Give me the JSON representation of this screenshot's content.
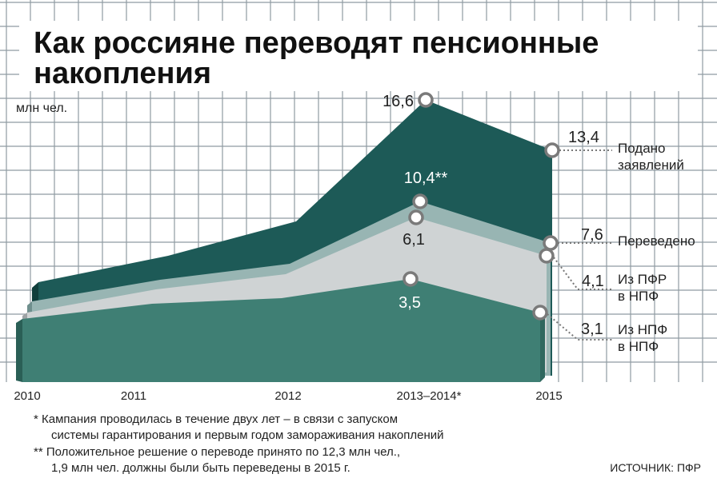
{
  "chart_data": {
    "type": "area",
    "title_lines": [
      "Как россияне переводят пенсионные",
      "накопления"
    ],
    "unit": "млн чел.",
    "categories": [
      "2010",
      "2011",
      "2012",
      "2013–2014*",
      "2015"
    ],
    "series": [
      {
        "name": "Подано заявлений",
        "legend": [
          "Подано",
          "заявлений"
        ],
        "color": "#1d5a57",
        "values": [
          null,
          null,
          null,
          16.6,
          13.4
        ],
        "labels": [
          "",
          "",
          "",
          "16,6",
          "13,4"
        ]
      },
      {
        "name": "Переведено",
        "legend": [
          "Переведено"
        ],
        "color": "#98b5b3",
        "values": [
          null,
          null,
          null,
          10.4,
          7.6
        ],
        "labels": [
          "",
          "",
          "",
          "10,4**",
          "7,6"
        ]
      },
      {
        "name": "Из ПФР в НПФ",
        "legend": [
          "Из ПФР",
          "в НПФ"
        ],
        "color": "#cfd3d4",
        "values": [
          null,
          null,
          null,
          6.1,
          4.1
        ],
        "labels": [
          "",
          "",
          "",
          "6,1",
          "4,1"
        ]
      },
      {
        "name": "Из НПФ в НПФ",
        "legend": [
          "Из НПФ",
          "в НПФ"
        ],
        "color": "#3f7f74",
        "values": [
          null,
          null,
          null,
          3.5,
          3.1
        ],
        "labels": [
          "",
          "",
          "",
          "3,5",
          "3,1"
        ]
      }
    ]
  },
  "footnotes": [
    "* Кампания проводилась в течение двух лет – в связи с запуском",
    "системы гарантирования и первым годом замораживания накоплений",
    "** Положительное решение о переводе принято по 12,3 млн чел.,",
    "1,9 млн чел. должны были быть переведены в 2015 г."
  ],
  "source": "ИСТОЧНИК: ПФР"
}
